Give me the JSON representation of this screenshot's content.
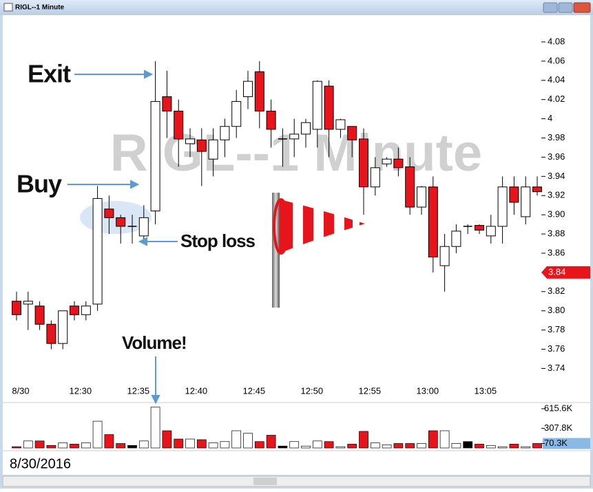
{
  "window_title": "RIGL--1 Minute",
  "chart_data": {
    "type": "candlestick",
    "title": "RIGL--1 Minute",
    "date_label": "8/30/2016",
    "categories": [
      "8/30",
      null,
      null,
      null,
      null,
      null,
      "12:30",
      null,
      null,
      null,
      null,
      "12:35",
      null,
      null,
      null,
      null,
      "12:40",
      null,
      null,
      null,
      null,
      "12:45",
      null,
      null,
      null,
      null,
      "12:50",
      null,
      null,
      null,
      null,
      "12:55",
      null,
      null,
      null,
      null,
      "13:00",
      null,
      null,
      null,
      null,
      "13:05",
      null,
      null,
      null,
      null
    ],
    "open": [
      3.81,
      3.807,
      3.805,
      3.786,
      3.766,
      3.805,
      3.796,
      3.807,
      3.906,
      3.897,
      3.888,
      3.878,
      3.904,
      4.023,
      4.008,
      3.974,
      3.978,
      3.958,
      3.978,
      3.992,
      4.023,
      4.049,
      4.008,
      3.979,
      3.979,
      3.984,
      3.989,
      4.034,
      3.989,
      3.992,
      3.979,
      3.929,
      3.953,
      3.958,
      3.95,
      3.908,
      3.929,
      3.847,
      3.867,
      3.888,
      3.889,
      3.878,
      3.888,
      3.929,
      3.898,
      3.929
    ],
    "high": [
      3.82,
      3.82,
      3.81,
      3.79,
      3.8,
      3.81,
      3.81,
      3.93,
      3.92,
      3.9,
      3.9,
      3.91,
      4.06,
      4.05,
      4.02,
      3.99,
      3.99,
      3.99,
      4.0,
      4.03,
      4.05,
      4.06,
      4.02,
      3.99,
      4.0,
      4.0,
      4.04,
      4.04,
      4.0,
      3.99,
      3.99,
      3.96,
      3.96,
      3.97,
      3.96,
      3.93,
      3.94,
      3.88,
      3.89,
      3.89,
      3.89,
      3.9,
      3.94,
      3.94,
      3.94,
      3.94
    ],
    "low": [
      3.79,
      3.78,
      3.78,
      3.76,
      3.76,
      3.79,
      3.79,
      3.8,
      3.88,
      3.87,
      3.87,
      3.87,
      3.89,
      3.98,
      3.95,
      3.96,
      3.93,
      3.94,
      3.96,
      3.98,
      4.01,
      3.99,
      3.97,
      3.95,
      3.96,
      3.97,
      3.97,
      3.96,
      3.98,
      3.96,
      3.9,
      3.92,
      3.95,
      3.94,
      3.9,
      3.9,
      3.84,
      3.82,
      3.86,
      3.88,
      3.88,
      3.87,
      3.87,
      3.9,
      3.89,
      3.92
    ],
    "close": [
      3.796,
      3.81,
      3.786,
      3.766,
      3.8,
      3.796,
      3.805,
      3.917,
      3.897,
      3.888,
      3.888,
      3.897,
      4.018,
      4.008,
      3.979,
      3.979,
      3.966,
      3.978,
      3.992,
      4.018,
      4.039,
      4.008,
      3.989,
      3.979,
      3.984,
      3.996,
      4.039,
      3.989,
      3.999,
      3.978,
      3.929,
      3.949,
      3.958,
      3.949,
      3.908,
      3.929,
      3.856,
      3.867,
      3.883,
      3.888,
      3.884,
      3.888,
      3.929,
      3.913,
      3.929,
      3.924
    ],
    "up_color": "#ffffff",
    "down_color": "#e8141b",
    "ylim": [
      3.731,
      4.095
    ],
    "yticks": [
      3.74,
      3.76,
      3.78,
      {
        "value": 3.8,
        "label": "3.80"
      },
      3.82,
      3.86,
      3.88,
      {
        "value": 3.9,
        "label": "3.90"
      },
      3.92,
      3.94,
      3.96,
      3.98,
      4,
      4.02,
      4.04,
      4.06,
      4.08
    ],
    "last_price": 3.84,
    "last_price_color": "#e8141b",
    "volume": {
      "values": [
        20,
        110,
        110,
        40,
        80,
        60,
        80,
        420,
        210,
        70,
        40,
        110,
        640,
        270,
        140,
        140,
        130,
        80,
        100,
        270,
        230,
        100,
        200,
        30,
        100,
        30,
        110,
        100,
        20,
        60,
        260,
        80,
        50,
        70,
        70,
        70,
        270,
        270,
        70,
        100,
        60,
        40,
        20,
        60,
        20,
        70.3
      ],
      "ylim": [
        0,
        680
      ],
      "yticks": [
        {
          "value": 70.3,
          "label": "70.3K"
        },
        {
          "value": 307.8,
          "label": "307.8K"
        },
        {
          "value": 615.6,
          "label": "615.6K"
        }
      ],
      "last_color": "#8ab9e6"
    },
    "annotations": [
      "Exit",
      "Buy",
      "Stop loss",
      "Volume!"
    ]
  }
}
